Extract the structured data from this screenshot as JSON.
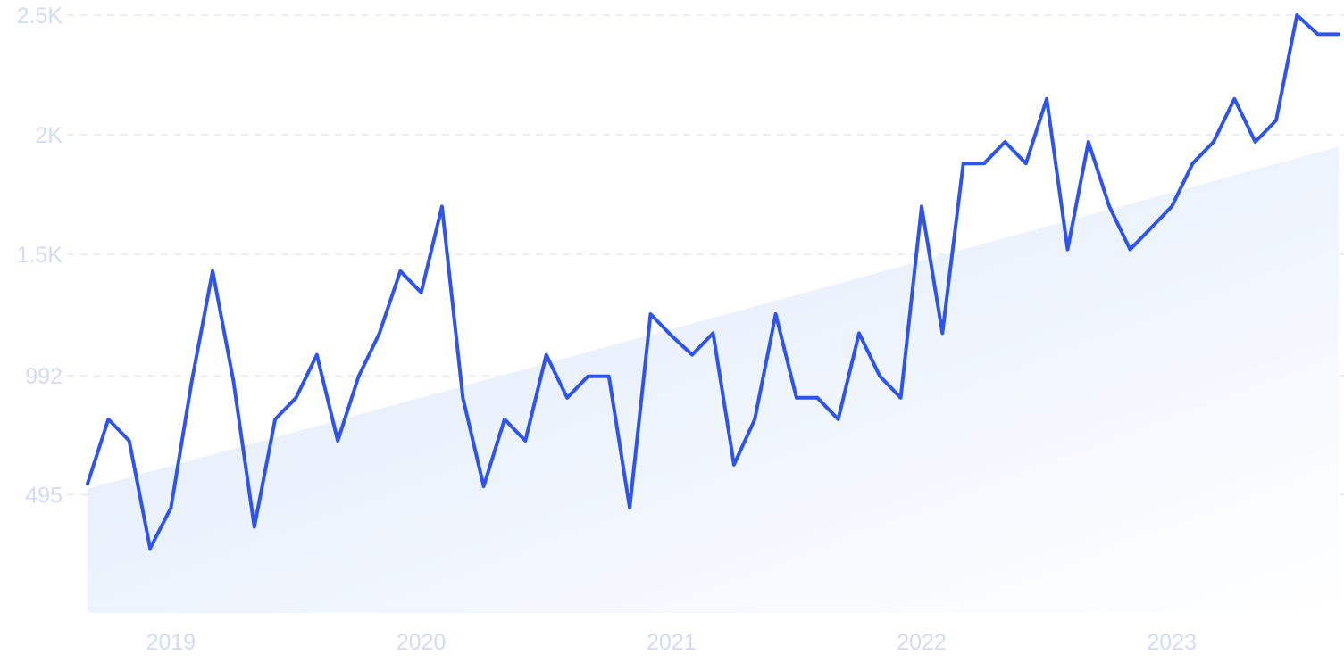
{
  "chart_data": {
    "type": "line",
    "title": "",
    "xlabel": "",
    "ylabel": "",
    "y_ticks": [
      "495",
      "992",
      "1.5K",
      "2K",
      "2.5K"
    ],
    "y_tick_values": [
      495,
      992,
      1500,
      2000,
      2500
    ],
    "x_ticks": [
      "2019",
      "2020",
      "2021",
      "2022",
      "2023"
    ],
    "x_tick_dates": [
      "2019-01",
      "2020-01",
      "2021-01",
      "2022-01",
      "2023-01"
    ],
    "ylim": [
      0,
      2500
    ],
    "xlim": [
      "2018-09",
      "2023-09"
    ],
    "grid": "horizontal-dashed",
    "legend": "none",
    "trend_area": {
      "start": 520,
      "end": 1950
    },
    "series": [
      {
        "x": [
          "2018-09",
          "2018-10",
          "2018-11",
          "2018-12",
          "2019-01",
          "2019-02",
          "2019-03",
          "2019-04",
          "2019-05",
          "2019-06",
          "2019-07",
          "2019-08",
          "2019-09",
          "2019-10",
          "2019-11",
          "2019-12",
          "2020-01",
          "2020-02",
          "2020-03",
          "2020-04",
          "2020-05",
          "2020-06",
          "2020-07",
          "2020-08",
          "2020-09",
          "2020-10",
          "2020-11",
          "2020-12",
          "2021-01",
          "2021-02",
          "2021-03",
          "2021-04",
          "2021-05",
          "2021-06",
          "2021-07",
          "2021-08",
          "2021-09",
          "2021-10",
          "2021-11",
          "2021-12",
          "2022-01",
          "2022-02",
          "2022-03",
          "2022-04",
          "2022-05",
          "2022-06",
          "2022-07",
          "2022-08",
          "2022-09",
          "2022-10",
          "2022-11",
          "2022-12",
          "2023-01",
          "2023-02",
          "2023-03",
          "2023-04",
          "2023-05",
          "2023-06",
          "2023-07",
          "2023-08",
          "2023-09"
        ],
        "values": [
          540,
          810,
          720,
          270,
          440,
          970,
          1430,
          970,
          360,
          810,
          900,
          1080,
          720,
          990,
          1170,
          1430,
          1340,
          1700,
          900,
          530,
          810,
          720,
          1080,
          900,
          990,
          990,
          440,
          1250,
          1160,
          1080,
          1170,
          620,
          810,
          1250,
          900,
          900,
          810,
          1170,
          990,
          900,
          1700,
          1170,
          1880,
          1880,
          1970,
          1880,
          2150,
          1520,
          1970,
          1700,
          1520,
          1610,
          1700,
          1880,
          1970,
          2150,
          1970,
          2060,
          2500,
          2420,
          2420
        ]
      }
    ],
    "colors": {
      "line": "#2f54eb",
      "area_top": "#dce8fb",
      "area_bottom": "#ffffff",
      "tick_label": "#d2dcf4",
      "grid": "#e3e9f4"
    }
  }
}
